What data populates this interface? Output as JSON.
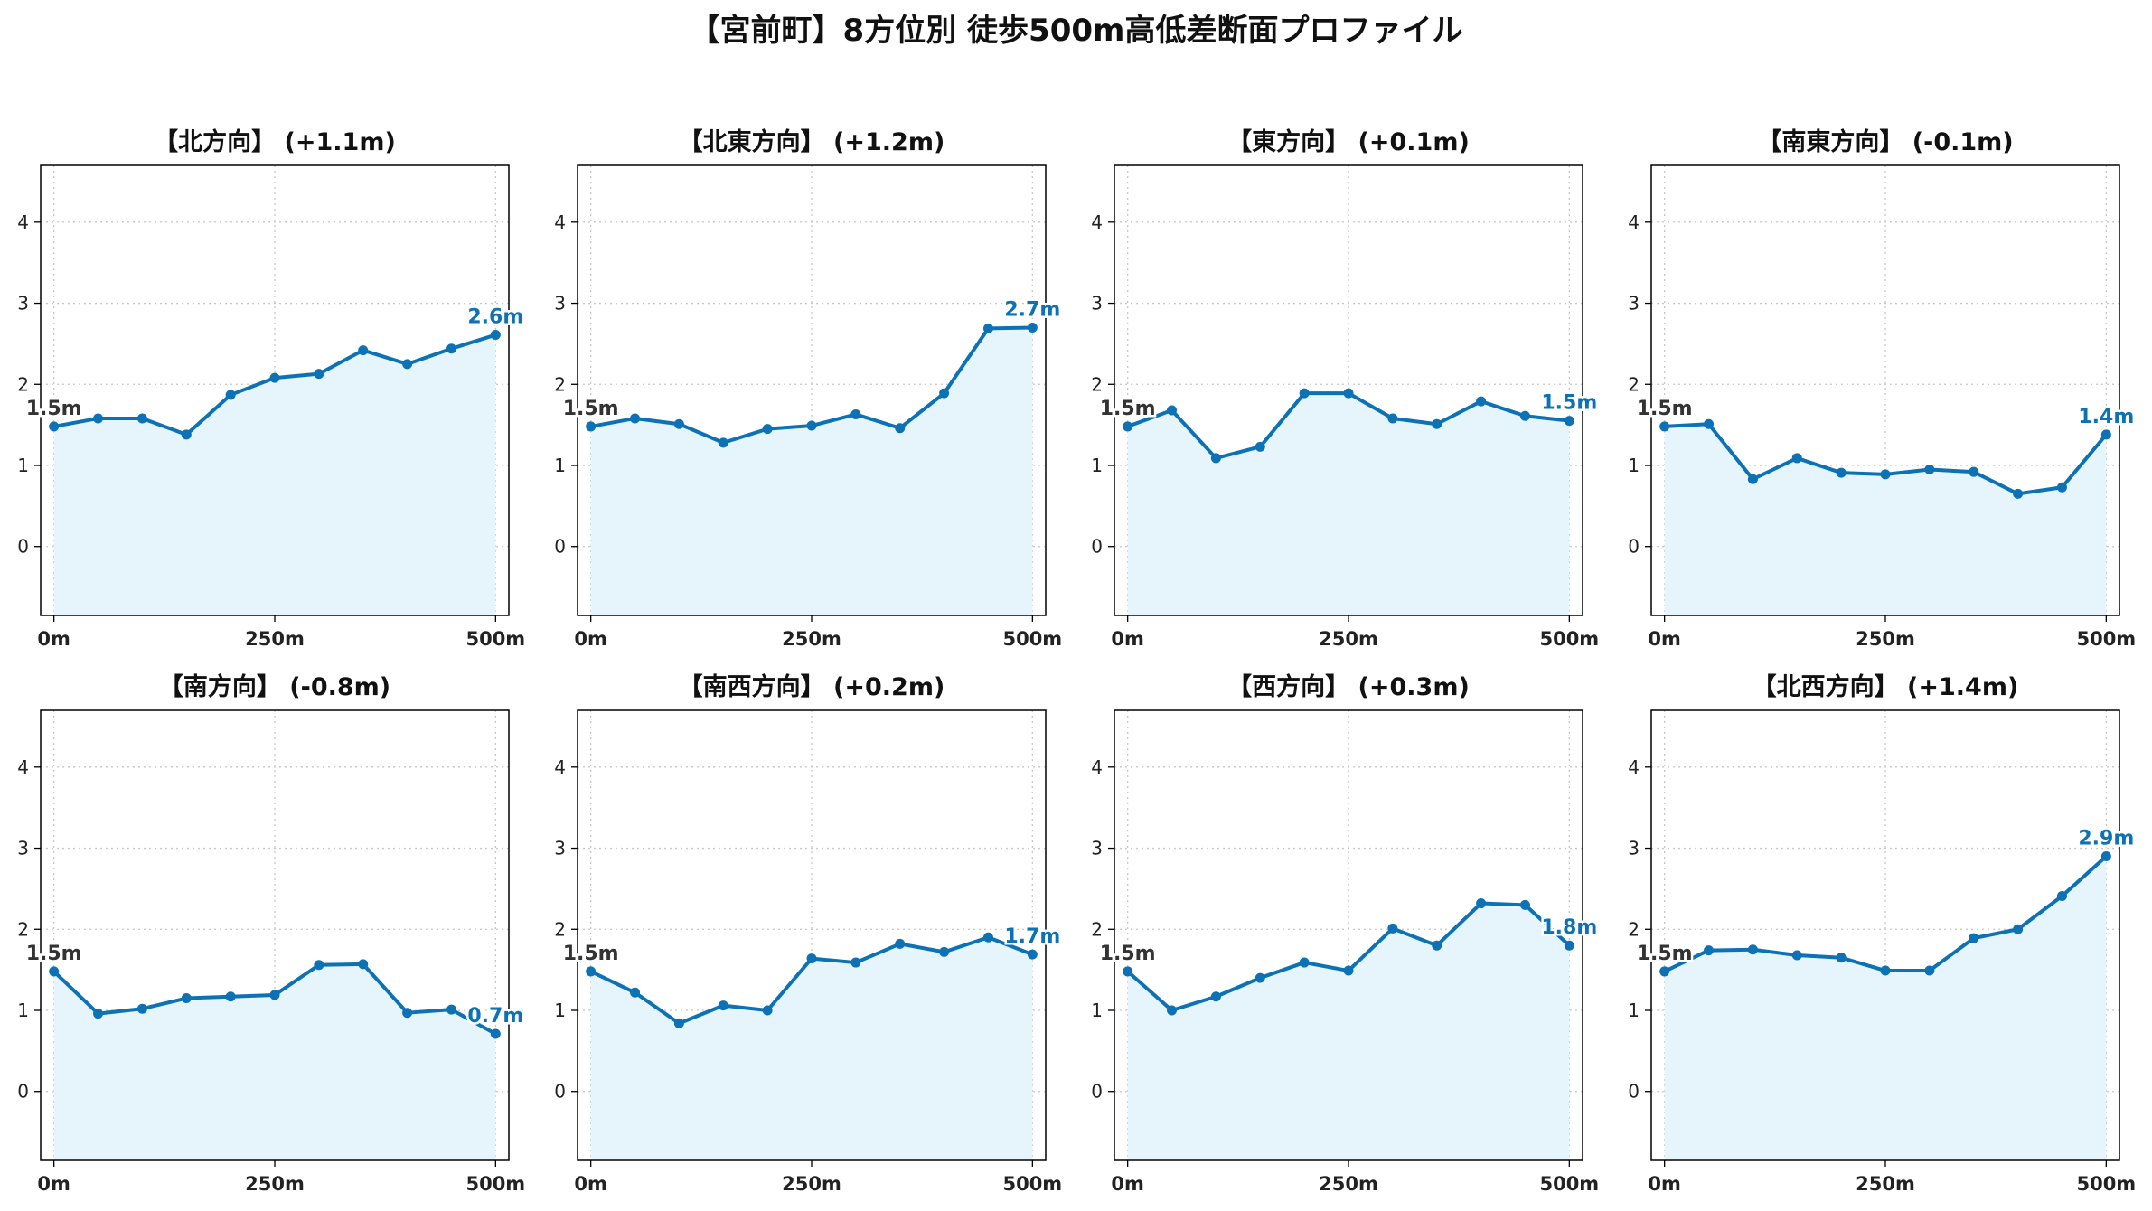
{
  "figure": {
    "title": "【宮前町】8方位別 徒歩500m高低差断面プロファイル"
  },
  "colors": {
    "line": "#0d72b5",
    "fill": "#e5f5fb",
    "grid": "#c8c8c8",
    "start_label": "#333333",
    "end_label": "#0d72b5"
  },
  "chart_data": [
    {
      "type": "area",
      "title": "【北方向】 (+1.1m)",
      "x": [
        0,
        50,
        100,
        150,
        200,
        250,
        300,
        350,
        400,
        450,
        500
      ],
      "values": [
        1.48,
        1.58,
        1.58,
        1.38,
        1.87,
        2.08,
        2.13,
        2.42,
        2.25,
        2.44,
        2.61
      ],
      "start_label": "1.5m",
      "end_label": "2.6m",
      "xticks": [
        0,
        250,
        500
      ],
      "xtick_labels": [
        "0m",
        "250m",
        "500m"
      ],
      "yticks": [
        0,
        1,
        2,
        3,
        4
      ],
      "ylim": [
        -0.85,
        4.7
      ],
      "xlim": [
        -15,
        515
      ],
      "grid": true
    },
    {
      "type": "area",
      "title": "【北東方向】 (+1.2m)",
      "x": [
        0,
        50,
        100,
        150,
        200,
        250,
        300,
        350,
        400,
        450,
        500
      ],
      "values": [
        1.48,
        1.58,
        1.51,
        1.28,
        1.45,
        1.49,
        1.63,
        1.46,
        1.89,
        2.69,
        2.7
      ],
      "start_label": "1.5m",
      "end_label": "2.7m",
      "xticks": [
        0,
        250,
        500
      ],
      "xtick_labels": [
        "0m",
        "250m",
        "500m"
      ],
      "yticks": [
        0,
        1,
        2,
        3,
        4
      ],
      "ylim": [
        -0.85,
        4.7
      ],
      "xlim": [
        -15,
        515
      ],
      "grid": true
    },
    {
      "type": "area",
      "title": "【東方向】 (+0.1m)",
      "x": [
        0,
        50,
        100,
        150,
        200,
        250,
        300,
        350,
        400,
        450,
        500
      ],
      "values": [
        1.48,
        1.68,
        1.09,
        1.23,
        1.89,
        1.89,
        1.58,
        1.51,
        1.79,
        1.61,
        1.55
      ],
      "start_label": "1.5m",
      "end_label": "1.5m",
      "xticks": [
        0,
        250,
        500
      ],
      "xtick_labels": [
        "0m",
        "250m",
        "500m"
      ],
      "yticks": [
        0,
        1,
        2,
        3,
        4
      ],
      "ylim": [
        -0.85,
        4.7
      ],
      "xlim": [
        -15,
        515
      ],
      "grid": true
    },
    {
      "type": "area",
      "title": "【南東方向】 (-0.1m)",
      "x": [
        0,
        50,
        100,
        150,
        200,
        250,
        300,
        350,
        400,
        450,
        500
      ],
      "values": [
        1.48,
        1.51,
        0.83,
        1.09,
        0.91,
        0.89,
        0.95,
        0.92,
        0.65,
        0.73,
        1.38
      ],
      "start_label": "1.5m",
      "end_label": "1.4m",
      "xticks": [
        0,
        250,
        500
      ],
      "xtick_labels": [
        "0m",
        "250m",
        "500m"
      ],
      "yticks": [
        0,
        1,
        2,
        3,
        4
      ],
      "ylim": [
        -0.85,
        4.7
      ],
      "xlim": [
        -15,
        515
      ],
      "grid": true
    },
    {
      "type": "area",
      "title": "【南方向】 (-0.8m)",
      "x": [
        0,
        50,
        100,
        150,
        200,
        250,
        300,
        350,
        400,
        450,
        500
      ],
      "values": [
        1.48,
        0.96,
        1.02,
        1.15,
        1.17,
        1.19,
        1.56,
        1.57,
        0.97,
        1.01,
        0.71
      ],
      "start_label": "1.5m",
      "end_label": "0.7m",
      "xticks": [
        0,
        250,
        500
      ],
      "xtick_labels": [
        "0m",
        "250m",
        "500m"
      ],
      "yticks": [
        0,
        1,
        2,
        3,
        4
      ],
      "ylim": [
        -0.85,
        4.7
      ],
      "xlim": [
        -15,
        515
      ],
      "grid": true
    },
    {
      "type": "area",
      "title": "【南西方向】 (+0.2m)",
      "x": [
        0,
        50,
        100,
        150,
        200,
        250,
        300,
        350,
        400,
        450,
        500
      ],
      "values": [
        1.48,
        1.22,
        0.84,
        1.06,
        1.0,
        1.64,
        1.59,
        1.82,
        1.72,
        1.9,
        1.69
      ],
      "start_label": "1.5m",
      "end_label": "1.7m",
      "xticks": [
        0,
        250,
        500
      ],
      "xtick_labels": [
        "0m",
        "250m",
        "500m"
      ],
      "yticks": [
        0,
        1,
        2,
        3,
        4
      ],
      "ylim": [
        -0.85,
        4.7
      ],
      "xlim": [
        -15,
        515
      ],
      "grid": true
    },
    {
      "type": "area",
      "title": "【西方向】 (+0.3m)",
      "x": [
        0,
        50,
        100,
        150,
        200,
        250,
        300,
        350,
        400,
        450,
        500
      ],
      "values": [
        1.48,
        1.0,
        1.17,
        1.4,
        1.59,
        1.49,
        2.01,
        1.8,
        2.32,
        2.3,
        1.8
      ],
      "start_label": "1.5m",
      "end_label": "1.8m",
      "xticks": [
        0,
        250,
        500
      ],
      "xtick_labels": [
        "0m",
        "250m",
        "500m"
      ],
      "yticks": [
        0,
        1,
        2,
        3,
        4
      ],
      "ylim": [
        -0.85,
        4.7
      ],
      "xlim": [
        -15,
        515
      ],
      "grid": true
    },
    {
      "type": "area",
      "title": "【北西方向】 (+1.4m)",
      "x": [
        0,
        50,
        100,
        150,
        200,
        250,
        300,
        350,
        400,
        450,
        500
      ],
      "values": [
        1.48,
        1.74,
        1.75,
        1.68,
        1.65,
        1.49,
        1.49,
        1.89,
        2.0,
        2.41,
        2.9
      ],
      "start_label": "1.5m",
      "end_label": "2.9m",
      "xticks": [
        0,
        250,
        500
      ],
      "xtick_labels": [
        "0m",
        "250m",
        "500m"
      ],
      "yticks": [
        0,
        1,
        2,
        3,
        4
      ],
      "ylim": [
        -0.85,
        4.7
      ],
      "xlim": [
        -15,
        515
      ],
      "grid": true
    }
  ]
}
